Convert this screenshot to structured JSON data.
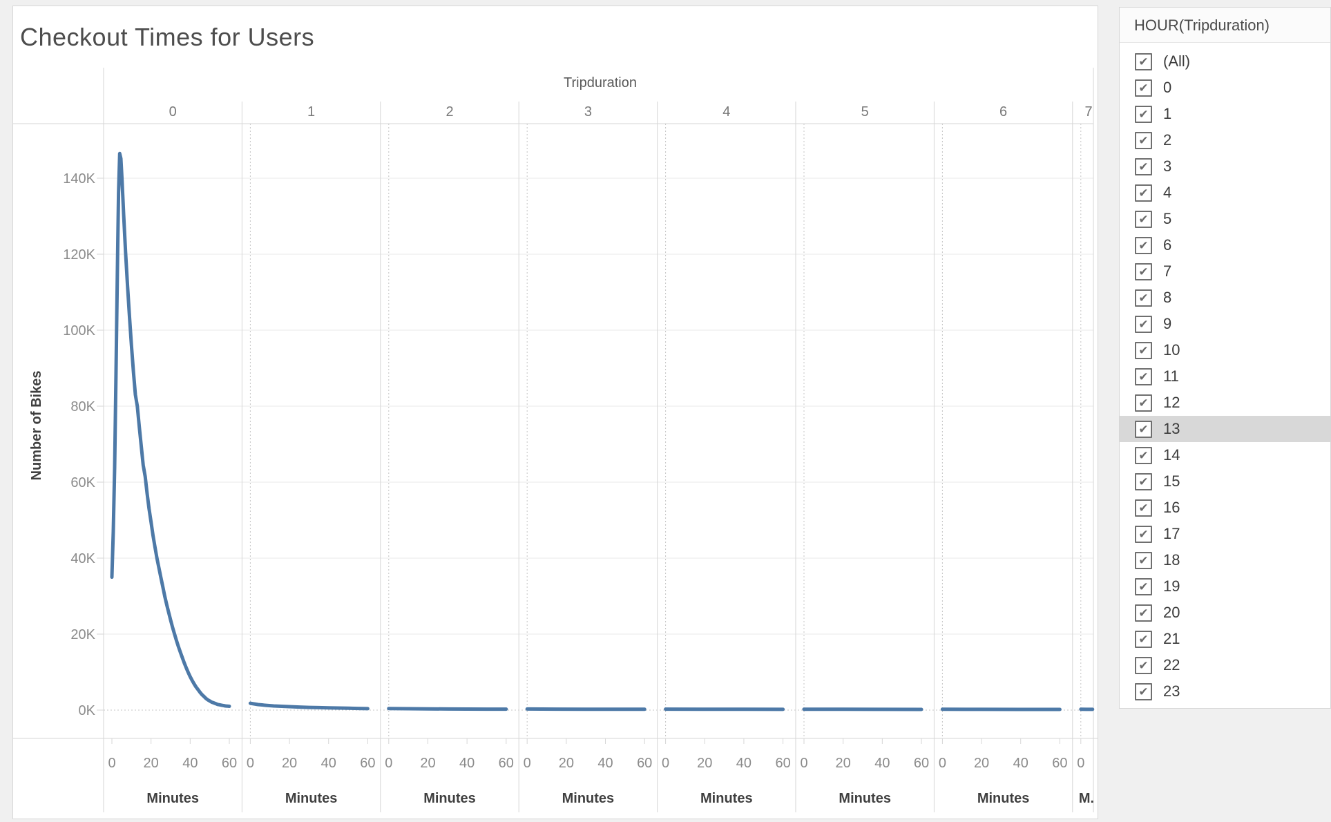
{
  "title": "Checkout Times for Users",
  "filter_panel": {
    "title": "HOUR(Tripduration)",
    "highlighted_item": "13",
    "highlight_color": "#d8d8d8",
    "checkbox_icon": "checkmark-icon",
    "items": [
      {
        "label": "(All)",
        "checked": true
      },
      {
        "label": "0",
        "checked": true
      },
      {
        "label": "1",
        "checked": true
      },
      {
        "label": "2",
        "checked": true
      },
      {
        "label": "3",
        "checked": true
      },
      {
        "label": "4",
        "checked": true
      },
      {
        "label": "5",
        "checked": true
      },
      {
        "label": "6",
        "checked": true
      },
      {
        "label": "7",
        "checked": true
      },
      {
        "label": "8",
        "checked": true
      },
      {
        "label": "9",
        "checked": true
      },
      {
        "label": "10",
        "checked": true
      },
      {
        "label": "11",
        "checked": true
      },
      {
        "label": "12",
        "checked": true
      },
      {
        "label": "13",
        "checked": true
      },
      {
        "label": "14",
        "checked": true
      },
      {
        "label": "15",
        "checked": true
      },
      {
        "label": "16",
        "checked": true
      },
      {
        "label": "17",
        "checked": true
      },
      {
        "label": "18",
        "checked": true
      },
      {
        "label": "19",
        "checked": true
      },
      {
        "label": "20",
        "checked": true
      },
      {
        "label": "21",
        "checked": true
      },
      {
        "label": "22",
        "checked": true
      },
      {
        "label": "23",
        "checked": true
      }
    ]
  },
  "chart_data": {
    "type": "line",
    "title": "Checkout Times for Users",
    "col_field": "Tripduration",
    "col_headers": [
      "0",
      "1",
      "2",
      "3",
      "4",
      "5",
      "6",
      "7"
    ],
    "last_col_clipped": true,
    "ylabel": "Number of Bikes",
    "xlabel": "Minutes",
    "xlabel_clipped_last": "M.",
    "y_tick_labels": [
      "0K",
      "20K",
      "40K",
      "60K",
      "80K",
      "100K",
      "120K",
      "140K"
    ],
    "y_tick_values": [
      0,
      20000,
      40000,
      60000,
      80000,
      100000,
      120000,
      140000
    ],
    "x_ticks": [
      0,
      20,
      40,
      60
    ],
    "xlim_per_panel": [
      0,
      60
    ],
    "ylim": [
      0,
      154000
    ],
    "grid": true,
    "zero_lines_dashed": true,
    "line_color": "#4d79a7",
    "peak_value": 146500,
    "peak_panel": "0",
    "panels": [
      {
        "hour": "0",
        "points": [
          [
            0,
            35000
          ],
          [
            0.7,
            47000
          ],
          [
            1.4,
            64000
          ],
          [
            2.1,
            88000
          ],
          [
            2.8,
            115000
          ],
          [
            3.4,
            136000
          ],
          [
            4,
            146500
          ],
          [
            4.6,
            145200
          ],
          [
            5.2,
            139500
          ],
          [
            6,
            130500
          ],
          [
            7,
            120500
          ],
          [
            8,
            111500
          ],
          [
            9,
            103500
          ],
          [
            10,
            96000
          ],
          [
            11,
            89000
          ],
          [
            12,
            83000
          ],
          [
            13,
            80000
          ],
          [
            14,
            74500
          ],
          [
            15,
            69500
          ],
          [
            16,
            64500
          ],
          [
            17,
            61500
          ],
          [
            18,
            57000
          ],
          [
            19,
            53000
          ],
          [
            20,
            49500
          ],
          [
            21,
            46000
          ],
          [
            22,
            43000
          ],
          [
            23,
            40000
          ],
          [
            24,
            37500
          ],
          [
            25,
            35000
          ],
          [
            26,
            32500
          ],
          [
            27,
            30000
          ],
          [
            28,
            27800
          ],
          [
            29,
            25700
          ],
          [
            30,
            23700
          ],
          [
            31,
            21800
          ],
          [
            32,
            20000
          ],
          [
            33,
            18300
          ],
          [
            34,
            16700
          ],
          [
            35,
            15200
          ],
          [
            36,
            13800
          ],
          [
            37,
            12400
          ],
          [
            38,
            11100
          ],
          [
            39,
            9900
          ],
          [
            40,
            8800
          ],
          [
            41,
            7800
          ],
          [
            42,
            6900
          ],
          [
            43,
            6100
          ],
          [
            44,
            5400
          ],
          [
            45,
            4700
          ],
          [
            46,
            4100
          ],
          [
            47,
            3600
          ],
          [
            48,
            3100
          ],
          [
            49,
            2700
          ],
          [
            50,
            2400
          ],
          [
            51,
            2100
          ],
          [
            52,
            1900
          ],
          [
            53,
            1700
          ],
          [
            54,
            1500
          ],
          [
            55,
            1400
          ],
          [
            56,
            1300
          ],
          [
            57,
            1200
          ],
          [
            58,
            1100
          ],
          [
            59,
            1050
          ],
          [
            60,
            1000
          ]
        ]
      },
      {
        "hour": "1",
        "points": [
          [
            0,
            1800
          ],
          [
            4,
            1450
          ],
          [
            8,
            1250
          ],
          [
            12,
            1100
          ],
          [
            16,
            1000
          ],
          [
            20,
            900
          ],
          [
            25,
            800
          ],
          [
            30,
            700
          ],
          [
            35,
            650
          ],
          [
            40,
            600
          ],
          [
            45,
            550
          ],
          [
            50,
            500
          ],
          [
            55,
            430
          ],
          [
            60,
            380
          ]
        ]
      },
      {
        "hour": "2",
        "points": [
          [
            0,
            420
          ],
          [
            10,
            360
          ],
          [
            20,
            320
          ],
          [
            30,
            300
          ],
          [
            40,
            280
          ],
          [
            50,
            260
          ],
          [
            60,
            250
          ]
        ]
      },
      {
        "hour": "3",
        "points": [
          [
            0,
            300
          ],
          [
            15,
            260
          ],
          [
            30,
            240
          ],
          [
            45,
            220
          ],
          [
            60,
            210
          ]
        ]
      },
      {
        "hour": "4",
        "points": [
          [
            0,
            260
          ],
          [
            20,
            230
          ],
          [
            40,
            210
          ],
          [
            60,
            200
          ]
        ]
      },
      {
        "hour": "5",
        "points": [
          [
            0,
            240
          ],
          [
            20,
            210
          ],
          [
            40,
            200
          ],
          [
            60,
            190
          ]
        ]
      },
      {
        "hour": "6",
        "points": [
          [
            0,
            220
          ],
          [
            20,
            200
          ],
          [
            40,
            190
          ],
          [
            60,
            180
          ]
        ]
      },
      {
        "hour": "7",
        "points": [
          [
            0,
            210
          ],
          [
            3,
            205
          ],
          [
            6,
            200
          ]
        ]
      }
    ]
  }
}
